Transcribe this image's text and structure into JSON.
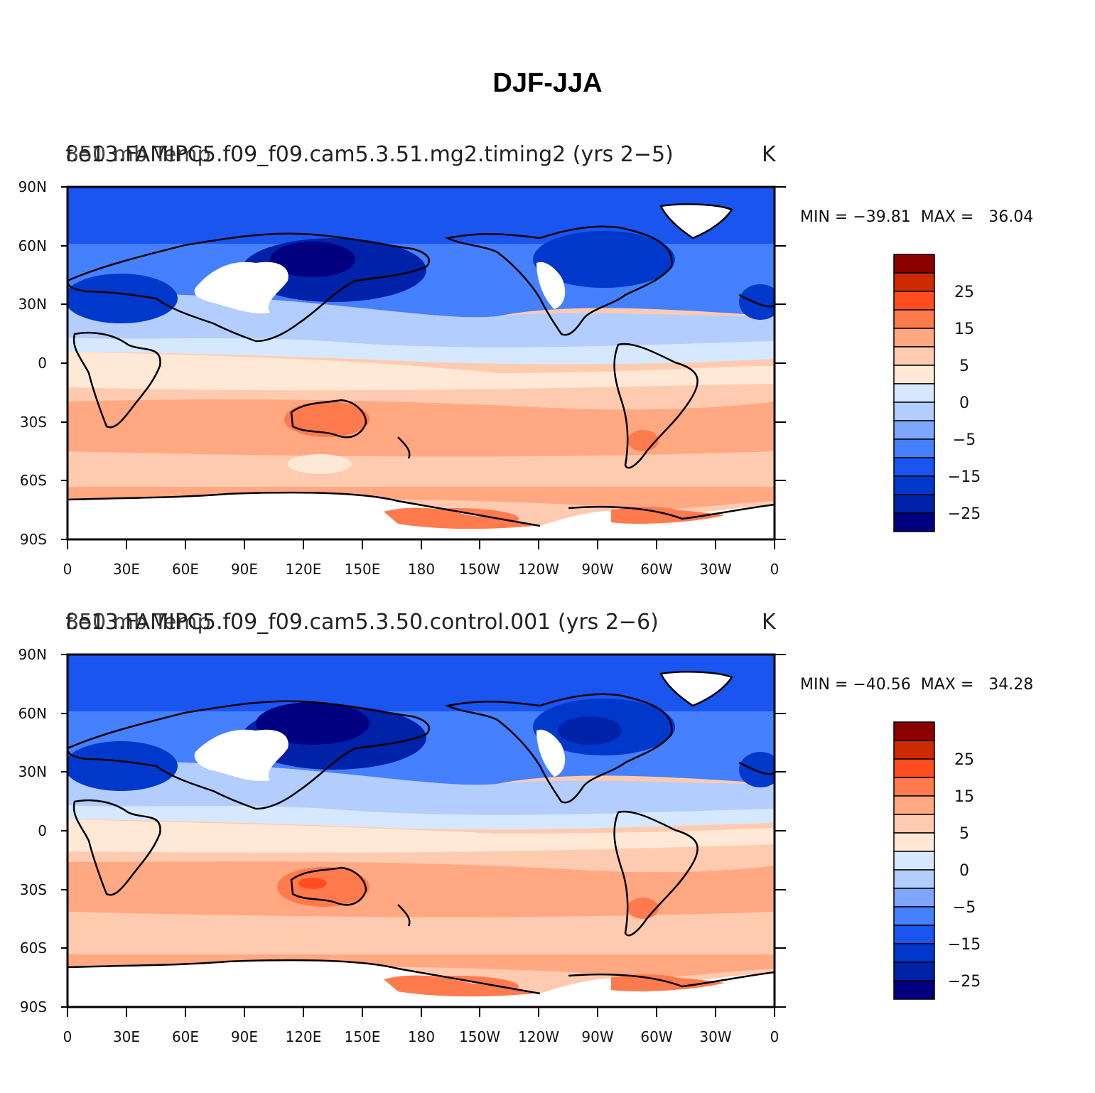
{
  "title": "DJF-JJA",
  "colors": {
    "levels": [
      "#000080",
      "#0022a8",
      "#0038cc",
      "#1a55f0",
      "#4580ff",
      "#7ea6ff",
      "#b3cdff",
      "#d6e8ff",
      "#ffe8d6",
      "#ffcbb0",
      "#ffa882",
      "#ff7a4d",
      "#ff4d1f",
      "#cc2a00",
      "#8c0000"
    ],
    "colorbar_labels": [
      "25",
      "15",
      "5",
      "0",
      "−5",
      "−15",
      "−25"
    ],
    "missing": "#ffffff"
  },
  "axes": {
    "lat_labels": [
      "90N",
      "60N",
      "30N",
      "0",
      "30S",
      "60S",
      "90S"
    ],
    "lon_labels": [
      "0",
      "30E",
      "60E",
      "90E",
      "120E",
      "150E",
      "180",
      "150W",
      "120W",
      "90W",
      "60W",
      "30W",
      "0"
    ]
  },
  "panels": [
    {
      "center_title": "f.e13.FAMIPC5.f09_f09.cam5.3.51.mg2.timing2 (yrs 2−5)",
      "left_title": "850 mb Temp",
      "units": "K",
      "min_max": "MIN = −39.81  MAX =   36.04"
    },
    {
      "center_title": "f.e13.FAMIPC5.f09_f09.cam5.3.50.control.001 (yrs 2−6)",
      "left_title": "850 mb Temp",
      "units": "K",
      "min_max": "MIN = −40.56  MAX =   34.28"
    }
  ]
}
